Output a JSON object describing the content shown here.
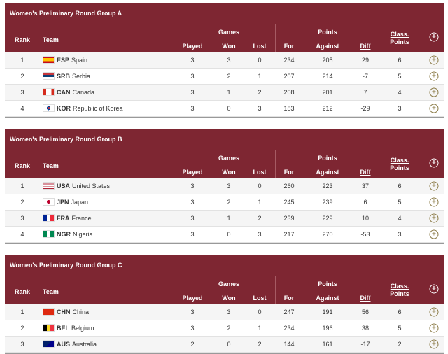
{
  "headers": {
    "rank": "Rank",
    "team": "Team",
    "games": "Games",
    "played": "Played",
    "won": "Won",
    "lost": "Lost",
    "points": "Points",
    "for": "For",
    "against": "Against",
    "diff": "Diff",
    "class_points_1": "Class.",
    "class_points_2": "Points",
    "expand": "+"
  },
  "colors": {
    "header_bg": "#7e2632",
    "row_alt": "#f5f5f5",
    "expand_icon": "#8a7a45"
  },
  "groups": [
    {
      "title": "Women's Preliminary Round Group A",
      "rows": [
        {
          "rank": "1",
          "flag": "ESP",
          "code": "ESP",
          "name": "Spain",
          "played": "3",
          "won": "3",
          "lost": "0",
          "for": "234",
          "against": "205",
          "diff": "29",
          "points": "6"
        },
        {
          "rank": "2",
          "flag": "SRB",
          "code": "SRB",
          "name": "Serbia",
          "played": "3",
          "won": "2",
          "lost": "1",
          "for": "207",
          "against": "214",
          "diff": "-7",
          "points": "5"
        },
        {
          "rank": "3",
          "flag": "CAN",
          "code": "CAN",
          "name": "Canada",
          "played": "3",
          "won": "1",
          "lost": "2",
          "for": "208",
          "against": "201",
          "diff": "7",
          "points": "4"
        },
        {
          "rank": "4",
          "flag": "KOR",
          "code": "KOR",
          "name": "Republic of Korea",
          "played": "3",
          "won": "0",
          "lost": "3",
          "for": "183",
          "against": "212",
          "diff": "-29",
          "points": "3"
        }
      ]
    },
    {
      "title": "Women's Preliminary Round Group B",
      "rows": [
        {
          "rank": "1",
          "flag": "USA",
          "code": "USA",
          "name": "United States",
          "played": "3",
          "won": "3",
          "lost": "0",
          "for": "260",
          "against": "223",
          "diff": "37",
          "points": "6"
        },
        {
          "rank": "2",
          "flag": "JPN",
          "code": "JPN",
          "name": "Japan",
          "played": "3",
          "won": "2",
          "lost": "1",
          "for": "245",
          "against": "239",
          "diff": "6",
          "points": "5"
        },
        {
          "rank": "3",
          "flag": "FRA",
          "code": "FRA",
          "name": "France",
          "played": "3",
          "won": "1",
          "lost": "2",
          "for": "239",
          "against": "229",
          "diff": "10",
          "points": "4"
        },
        {
          "rank": "4",
          "flag": "NGR",
          "code": "NGR",
          "name": "Nigeria",
          "played": "3",
          "won": "0",
          "lost": "3",
          "for": "217",
          "against": "270",
          "diff": "-53",
          "points": "3"
        }
      ]
    },
    {
      "title": "Women's Preliminary Round Group C",
      "rows": [
        {
          "rank": "1",
          "flag": "CHN",
          "code": "CHN",
          "name": "China",
          "played": "3",
          "won": "3",
          "lost": "0",
          "for": "247",
          "against": "191",
          "diff": "56",
          "points": "6"
        },
        {
          "rank": "2",
          "flag": "BEL",
          "code": "BEL",
          "name": "Belgium",
          "played": "3",
          "won": "2",
          "lost": "1",
          "for": "234",
          "against": "196",
          "diff": "38",
          "points": "5"
        },
        {
          "rank": "3",
          "flag": "AUS",
          "code": "AUS",
          "name": "Australia",
          "played": "2",
          "won": "0",
          "lost": "2",
          "for": "144",
          "against": "161",
          "diff": "-17",
          "points": "2"
        }
      ]
    }
  ]
}
